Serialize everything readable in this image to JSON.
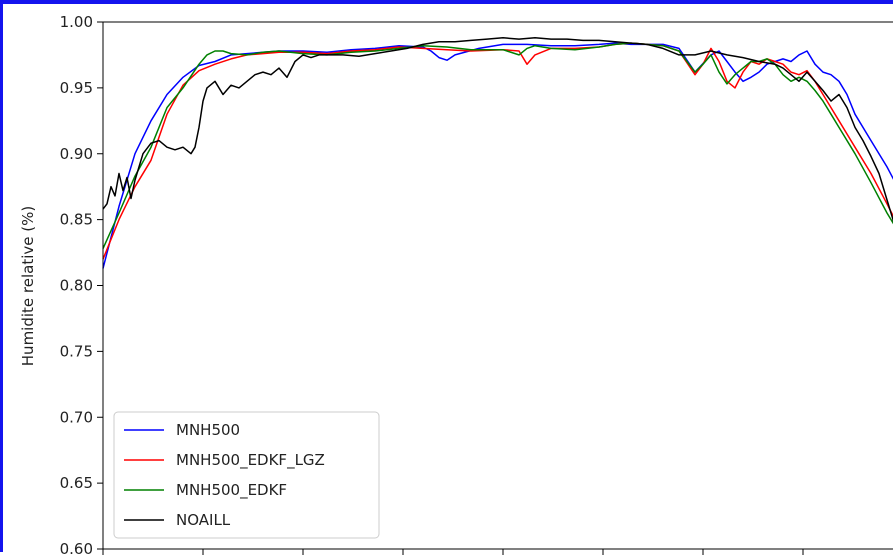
{
  "chart_data": {
    "type": "line",
    "ylabel": "Humidite relative (%)",
    "xlabel": "",
    "ylim": [
      0.6,
      1.0
    ],
    "xlim": [
      0,
      100
    ],
    "yticks": [
      "0.60",
      "0.65",
      "0.70",
      "0.75",
      "0.80",
      "0.85",
      "0.90",
      "0.95",
      "1.00"
    ],
    "xtick_positions": [
      0,
      12.5,
      25,
      37.5,
      50,
      62.5,
      75,
      87.5
    ],
    "grid": false,
    "legend_position": "lower-left",
    "series": [
      {
        "name": "MNH500",
        "color": "#0000ff",
        "x": [
          0,
          2,
          4,
          6,
          8,
          10,
          12,
          14,
          16,
          18,
          20,
          22,
          25,
          28,
          31,
          34,
          37,
          40,
          41,
          42,
          43,
          44,
          47,
          50,
          53,
          56,
          59,
          62,
          64,
          66,
          68,
          70,
          72,
          74,
          76,
          77,
          78,
          79,
          80,
          81,
          82,
          83,
          84,
          85,
          86,
          87,
          88,
          89,
          90,
          91,
          92,
          93,
          94,
          96,
          98,
          100
        ],
        "y": [
          0.813,
          0.86,
          0.9,
          0.925,
          0.945,
          0.958,
          0.967,
          0.97,
          0.975,
          0.976,
          0.977,
          0.978,
          0.978,
          0.977,
          0.979,
          0.98,
          0.982,
          0.981,
          0.978,
          0.973,
          0.971,
          0.975,
          0.98,
          0.983,
          0.983,
          0.982,
          0.982,
          0.983,
          0.984,
          0.983,
          0.983,
          0.983,
          0.98,
          0.962,
          0.975,
          0.978,
          0.97,
          0.962,
          0.955,
          0.958,
          0.962,
          0.968,
          0.97,
          0.972,
          0.97,
          0.975,
          0.978,
          0.968,
          0.962,
          0.96,
          0.955,
          0.945,
          0.93,
          0.91,
          0.89,
          0.867
        ]
      },
      {
        "name": "MNH500_EDKF_LGZ",
        "color": "#ff0000",
        "x": [
          0,
          2,
          4,
          6,
          8,
          10,
          12,
          14,
          16,
          18,
          20,
          22,
          25,
          28,
          31,
          34,
          37,
          40,
          43,
          46,
          50,
          52,
          53,
          54,
          56,
          59,
          62,
          64,
          66,
          68,
          70,
          72,
          74,
          75,
          76,
          77,
          78,
          79,
          80,
          81,
          82,
          83,
          84,
          85,
          86,
          87,
          88,
          89,
          90,
          91,
          92,
          94,
          96,
          98,
          100
        ],
        "y": [
          0.82,
          0.85,
          0.875,
          0.895,
          0.93,
          0.952,
          0.963,
          0.968,
          0.972,
          0.975,
          0.976,
          0.977,
          0.977,
          0.976,
          0.978,
          0.979,
          0.981,
          0.98,
          0.979,
          0.978,
          0.979,
          0.978,
          0.968,
          0.975,
          0.98,
          0.98,
          0.981,
          0.983,
          0.984,
          0.983,
          0.982,
          0.978,
          0.96,
          0.968,
          0.98,
          0.97,
          0.955,
          0.95,
          0.962,
          0.97,
          0.968,
          0.972,
          0.97,
          0.968,
          0.962,
          0.96,
          0.963,
          0.955,
          0.945,
          0.935,
          0.925,
          0.905,
          0.885,
          0.862,
          0.838
        ]
      },
      {
        "name": "MNH500_EDKF",
        "color": "#008000",
        "x": [
          0,
          2,
          4,
          6,
          8,
          10,
          12,
          13,
          14,
          15,
          16,
          18,
          20,
          22,
          25,
          28,
          31,
          34,
          37,
          40,
          43,
          46,
          50,
          52,
          53,
          54,
          56,
          59,
          62,
          64,
          66,
          68,
          70,
          72,
          74,
          75,
          76,
          77,
          78,
          79,
          80,
          81,
          82,
          83,
          84,
          85,
          86,
          87,
          88,
          89,
          90,
          91,
          92,
          94,
          96,
          98,
          100
        ],
        "y": [
          0.828,
          0.855,
          0.883,
          0.905,
          0.935,
          0.95,
          0.968,
          0.975,
          0.978,
          0.978,
          0.976,
          0.975,
          0.977,
          0.978,
          0.976,
          0.975,
          0.977,
          0.978,
          0.98,
          0.982,
          0.981,
          0.979,
          0.979,
          0.975,
          0.98,
          0.982,
          0.98,
          0.979,
          0.981,
          0.983,
          0.984,
          0.983,
          0.982,
          0.978,
          0.962,
          0.968,
          0.975,
          0.962,
          0.953,
          0.96,
          0.965,
          0.97,
          0.97,
          0.972,
          0.968,
          0.96,
          0.955,
          0.958,
          0.955,
          0.948,
          0.94,
          0.93,
          0.92,
          0.9,
          0.878,
          0.855,
          0.835
        ]
      },
      {
        "name": "NOAILL",
        "color": "#000000",
        "x": [
          0,
          0.5,
          1,
          1.5,
          2,
          2.5,
          3,
          3.5,
          4,
          4.5,
          5,
          6,
          7,
          8,
          9,
          10,
          11,
          11.5,
          12,
          12.5,
          13,
          14,
          15,
          16,
          17,
          18,
          19,
          20,
          21,
          22,
          23,
          24,
          25,
          26,
          27,
          28,
          30,
          32,
          34,
          36,
          38,
          40,
          42,
          44,
          46,
          48,
          50,
          52,
          54,
          56,
          58,
          60,
          62,
          64,
          66,
          68,
          70,
          72,
          74,
          76,
          78,
          80,
          82,
          84,
          85,
          86,
          87,
          88,
          89,
          90,
          91,
          92,
          93,
          94,
          95,
          96,
          97,
          98,
          99,
          100
        ],
        "y": [
          0.858,
          0.862,
          0.875,
          0.868,
          0.885,
          0.872,
          0.882,
          0.866,
          0.88,
          0.89,
          0.9,
          0.908,
          0.91,
          0.905,
          0.903,
          0.905,
          0.9,
          0.905,
          0.92,
          0.94,
          0.95,
          0.955,
          0.945,
          0.952,
          0.95,
          0.955,
          0.96,
          0.962,
          0.96,
          0.965,
          0.958,
          0.97,
          0.975,
          0.973,
          0.975,
          0.975,
          0.975,
          0.974,
          0.976,
          0.978,
          0.98,
          0.983,
          0.985,
          0.985,
          0.986,
          0.987,
          0.988,
          0.987,
          0.988,
          0.987,
          0.987,
          0.986,
          0.986,
          0.985,
          0.984,
          0.983,
          0.98,
          0.975,
          0.975,
          0.978,
          0.975,
          0.973,
          0.97,
          0.968,
          0.965,
          0.96,
          0.955,
          0.962,
          0.955,
          0.948,
          0.94,
          0.945,
          0.935,
          0.92,
          0.91,
          0.898,
          0.885,
          0.865,
          0.845,
          0.825
        ]
      }
    ]
  }
}
